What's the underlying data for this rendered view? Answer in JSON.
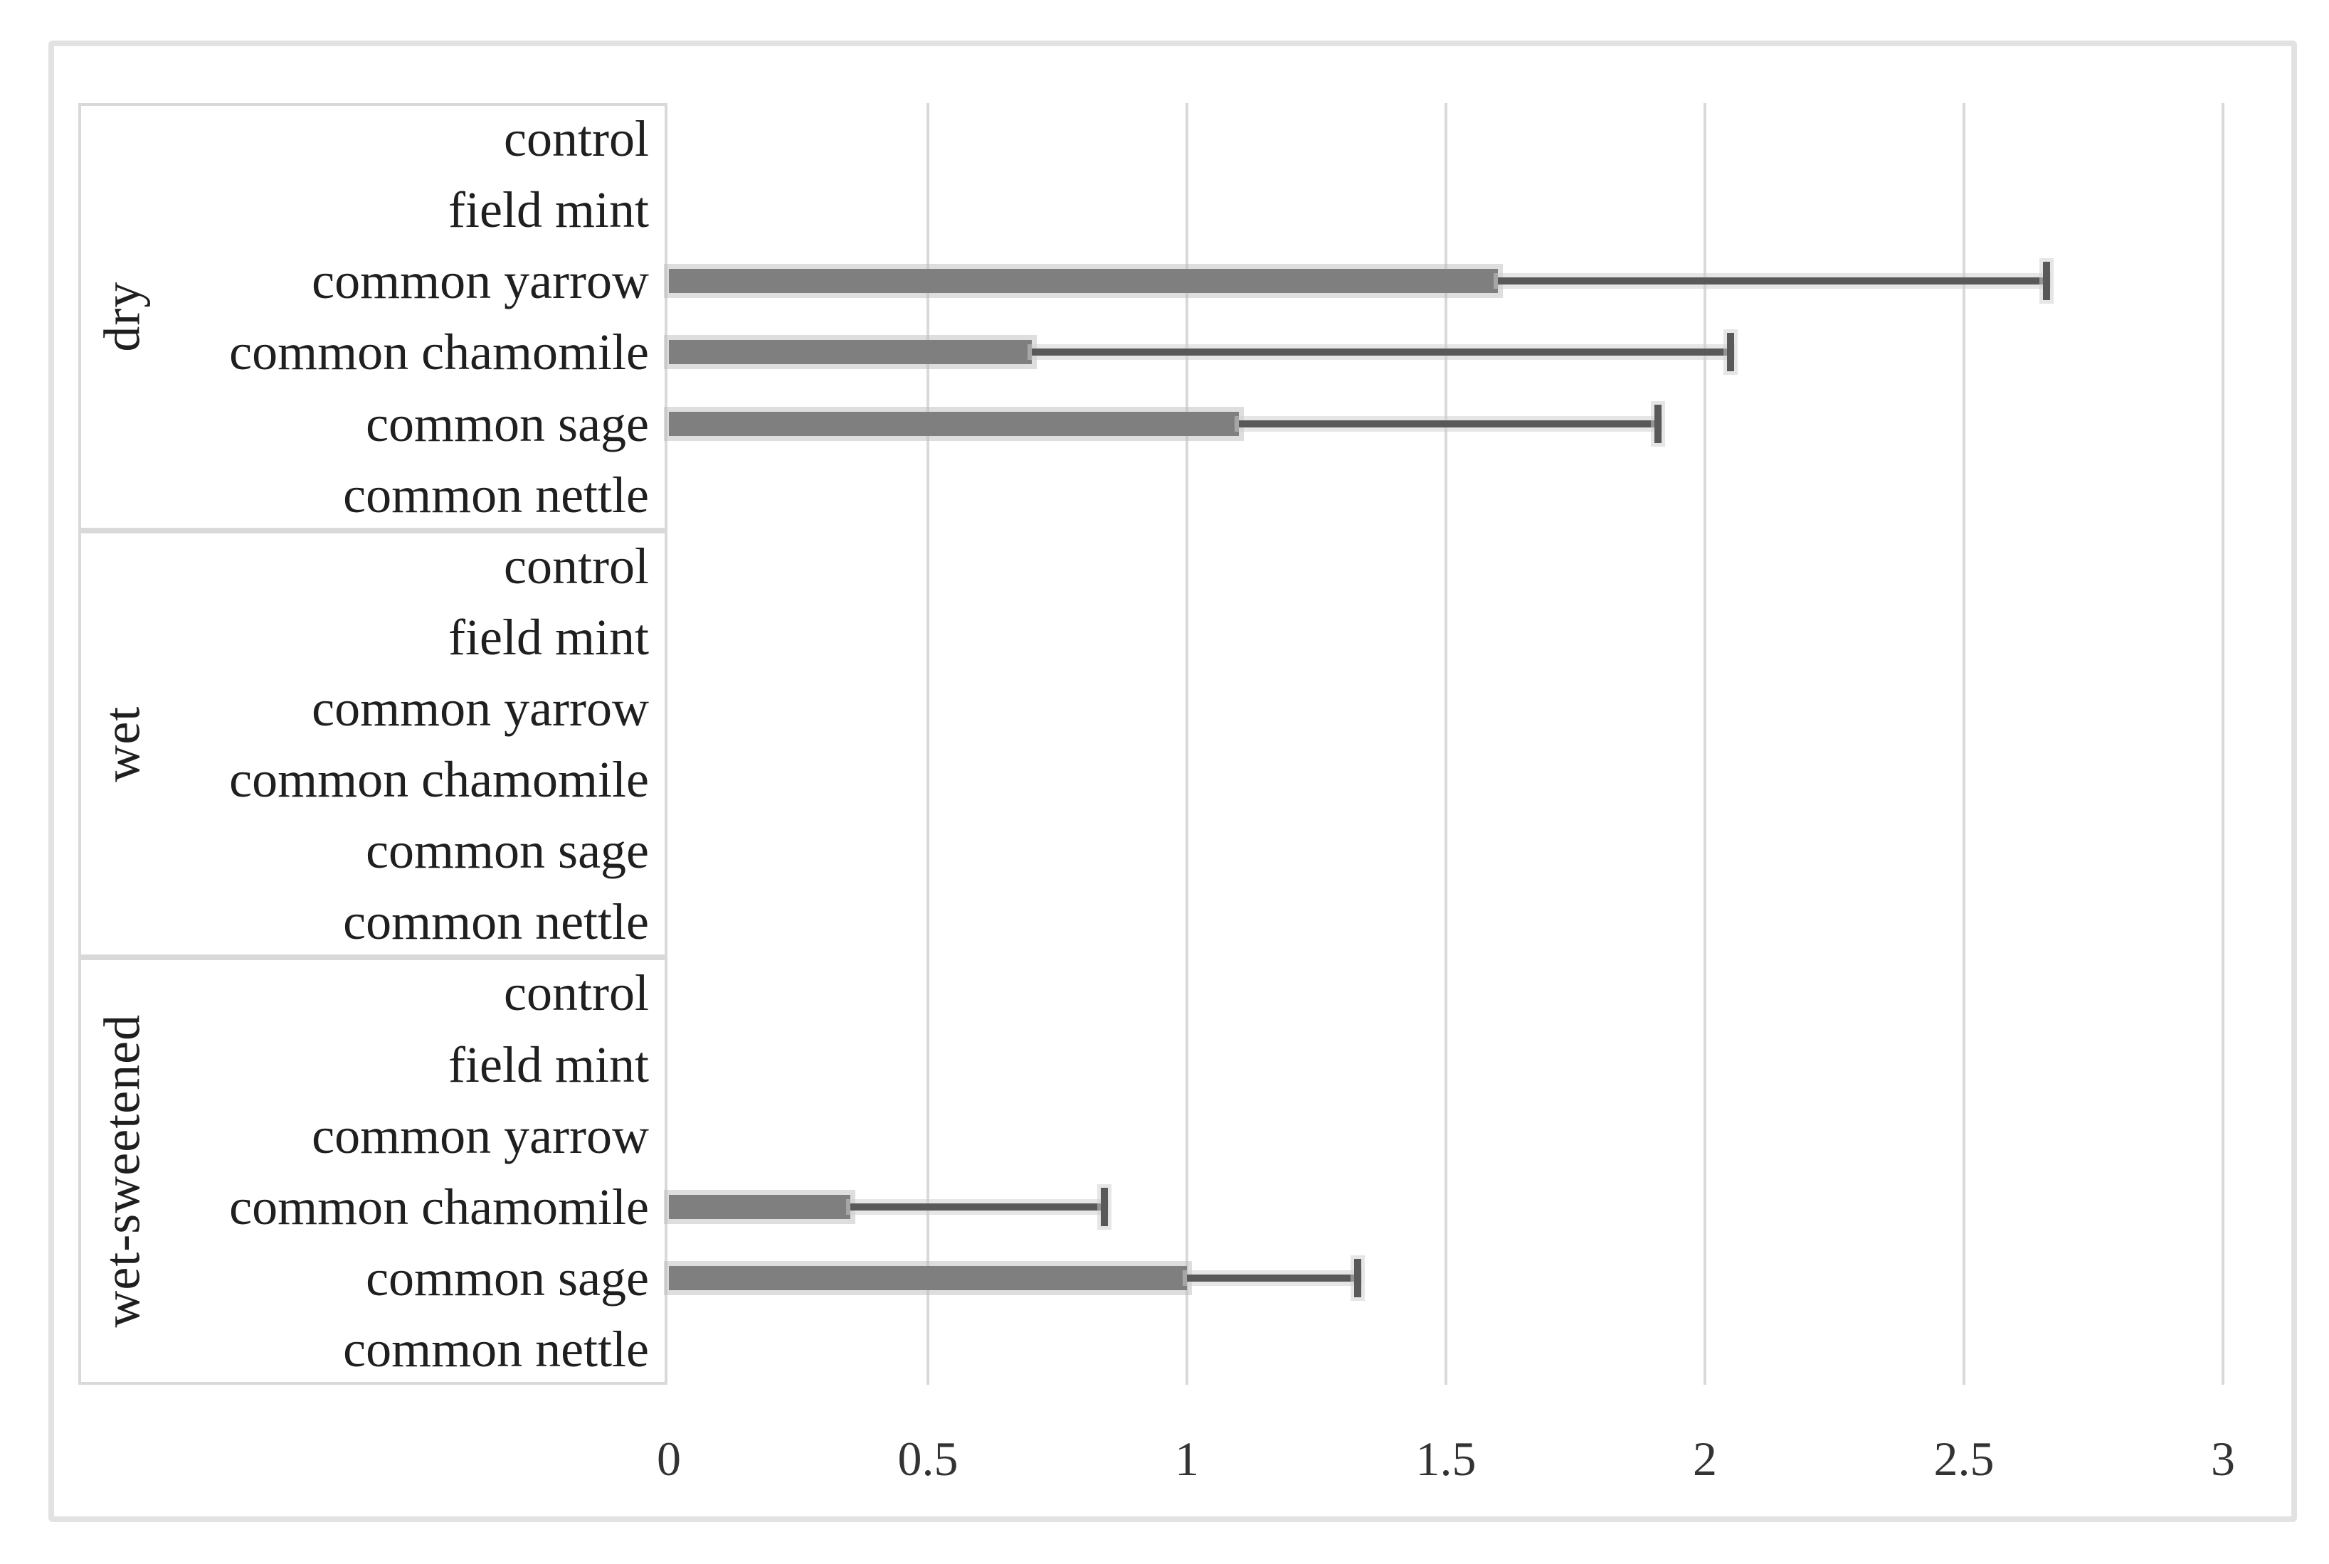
{
  "chart_data": {
    "type": "bar",
    "orientation": "horizontal",
    "title": "",
    "xlabel": "",
    "ylabel": "",
    "xlim": [
      0,
      3
    ],
    "x_ticks": [
      0,
      0.5,
      1,
      1.5,
      2,
      2.5,
      3
    ],
    "tick_labels": [
      "0",
      "0.5",
      "1",
      "1.5",
      "2",
      "2.5",
      "3"
    ],
    "grid": true,
    "legend": "none",
    "groups": [
      {
        "label": "dry",
        "items": [
          {
            "label": "control",
            "value": 0,
            "error_high": null
          },
          {
            "label": "field mint",
            "value": 0,
            "error_high": null
          },
          {
            "label": "common yarrow",
            "value": 1.6,
            "error_high": 2.66
          },
          {
            "label": "common chamomile",
            "value": 0.7,
            "error_high": 2.05
          },
          {
            "label": "common sage",
            "value": 1.1,
            "error_high": 1.91
          },
          {
            "label": "common nettle",
            "value": 0,
            "error_high": null
          }
        ]
      },
      {
        "label": "wet",
        "items": [
          {
            "label": "control",
            "value": 0,
            "error_high": null
          },
          {
            "label": "field mint",
            "value": 0,
            "error_high": null
          },
          {
            "label": "common yarrow",
            "value": 0,
            "error_high": null
          },
          {
            "label": "common chamomile",
            "value": 0,
            "error_high": null
          },
          {
            "label": "common sage",
            "value": 0,
            "error_high": null
          },
          {
            "label": "common nettle",
            "value": 0,
            "error_high": null
          }
        ]
      },
      {
        "label": "wet-sweetened",
        "items": [
          {
            "label": "control",
            "value": 0,
            "error_high": null
          },
          {
            "label": "field mint",
            "value": 0,
            "error_high": null
          },
          {
            "label": "common yarrow",
            "value": 0,
            "error_high": null
          },
          {
            "label": "common chamomile",
            "value": 0.35,
            "error_high": 0.84
          },
          {
            "label": "common sage",
            "value": 1.0,
            "error_high": 1.33
          },
          {
            "label": "common nettle",
            "value": 0,
            "error_high": null
          }
        ]
      }
    ],
    "colors": {
      "bar": "#7f7f7f",
      "error_bar": "#595959",
      "gridline": "#d9d9d9",
      "box_border": "#d9d9d9",
      "outer_border": "#e2e2e2",
      "text": "#1f1f1f"
    }
  }
}
